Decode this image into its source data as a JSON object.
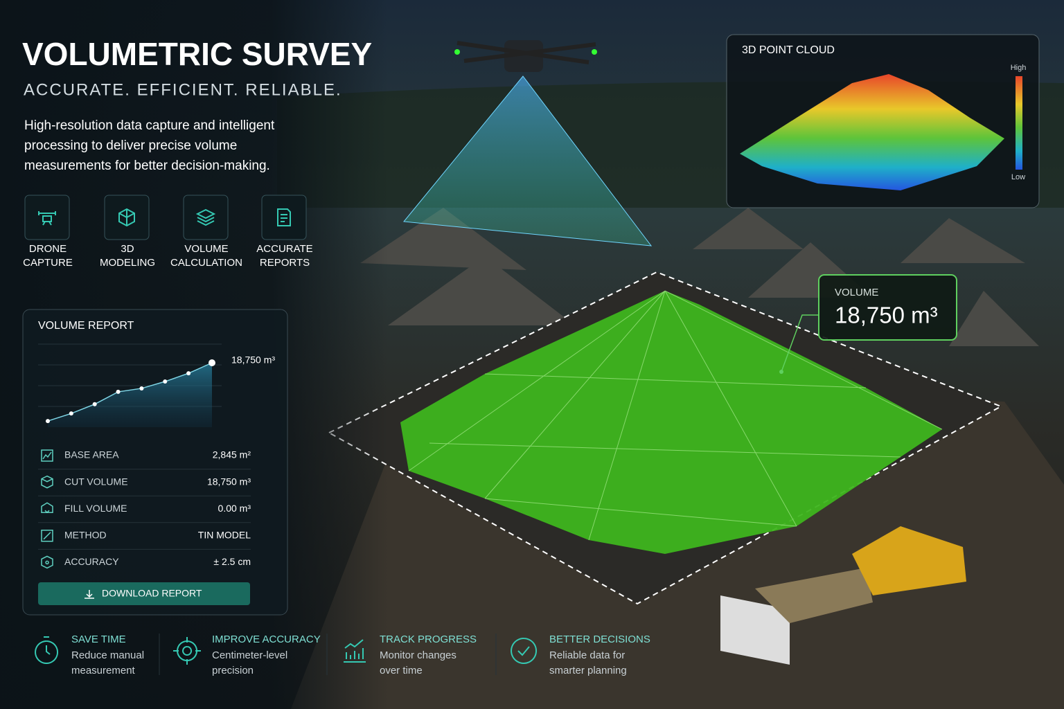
{
  "header": {
    "title": "VOLUMETRIC SURVEY",
    "tagline": "ACCURATE. EFFICIENT. RELIABLE.",
    "description": [
      "High-resolution data capture and intelligent",
      "processing to deliver precise volume",
      "measurements for better decision-making."
    ]
  },
  "features": [
    {
      "lines": [
        "DRONE",
        "CAPTURE"
      ]
    },
    {
      "lines": [
        "3D",
        "MODELING"
      ]
    },
    {
      "lines": [
        "VOLUME",
        "CALCULATION"
      ]
    },
    {
      "lines": [
        "ACCURATE",
        "REPORTS"
      ]
    }
  ],
  "report": {
    "title": "VOLUME REPORT",
    "trend": {
      "values": [
        1800,
        4000,
        6700,
        10300,
        11300,
        13300,
        15700,
        18750
      ],
      "end_label": "18,750 m³"
    },
    "rows": [
      {
        "label": "BASE AREA",
        "value": "2,845 m²"
      },
      {
        "label": "CUT VOLUME",
        "value": "18,750 m³"
      },
      {
        "label": "FILL VOLUME",
        "value": "0.00 m³"
      },
      {
        "label": "METHOD",
        "value": "TIN MODEL"
      },
      {
        "label": "ACCURACY",
        "value": "± 2.5 cm"
      }
    ],
    "button": "DOWNLOAD REPORT"
  },
  "point_cloud": {
    "title": "3D POINT CLOUD",
    "high": "High",
    "low": "Low"
  },
  "callout": {
    "label": "VOLUME",
    "value": "18,750 m³"
  },
  "benefits": [
    {
      "title": "SAVE TIME",
      "lines": [
        "Reduce manual",
        "measurement"
      ]
    },
    {
      "title": "IMPROVE ACCURACY",
      "lines": [
        "Centimeter-level",
        "precision"
      ]
    },
    {
      "title": "TRACK PROGRESS",
      "lines": [
        "Monitor changes",
        "over time"
      ]
    },
    {
      "title": "BETTER DECISIONS",
      "lines": [
        "Reliable data for",
        "smarter planning"
      ]
    }
  ]
}
